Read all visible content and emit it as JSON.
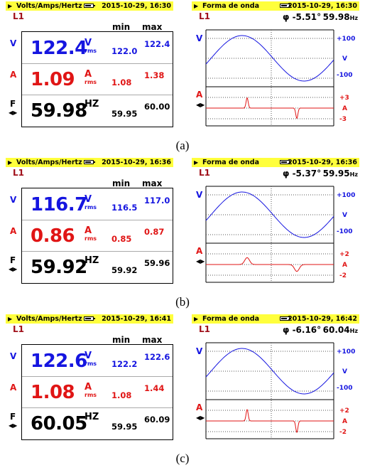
{
  "panels": [
    {
      "meter": {
        "title": "Volts/Amps/Hertz",
        "datetime": "2015-10-29, 16:30",
        "phase_label": "L1",
        "col_min": "min",
        "col_max": "max",
        "v_label": "V",
        "v_value": "122.4",
        "v_unit": "V",
        "v_sub": "rms",
        "v_min": "122.0",
        "v_max": "122.4",
        "a_label": "A",
        "a_value": "1.09",
        "a_unit": "A",
        "a_sub": "rms",
        "a_min": "1.08",
        "a_max": "1.38",
        "f_label": "F",
        "f_value": "59.98",
        "f_unit": "HZ",
        "f_min": "59.95",
        "f_max": "60.00"
      },
      "wave": {
        "title": "Forma de onda",
        "datetime": "2015-10-29, 16:30",
        "phase_label": "L1",
        "phi": "φ -5.51°",
        "freq": "59.98",
        "freq_unit": "Hz",
        "v_label": "V",
        "v_ticks": [
          "+100",
          "V",
          "-100"
        ],
        "a_label": "A",
        "a_ticks": [
          "+3",
          "A",
          "-3"
        ],
        "pulse_amp": 0.9,
        "pulse_width": 0.7
      },
      "caption": "(a)"
    },
    {
      "meter": {
        "title": "Volts/Amps/Hertz",
        "datetime": "2015-10-29, 16:36",
        "phase_label": "L1",
        "col_min": "min",
        "col_max": "max",
        "v_label": "V",
        "v_value": "116.7",
        "v_unit": "V",
        "v_sub": "rms",
        "v_min": "116.5",
        "v_max": "117.0",
        "a_label": "A",
        "a_value": "0.86",
        "a_unit": "A",
        "a_sub": "rms",
        "a_min": "0.85",
        "a_max": "0.87",
        "f_label": "F",
        "f_value": "59.92",
        "f_unit": "HZ",
        "f_min": "59.92",
        "f_max": "59.96"
      },
      "wave": {
        "title": "Forma de onda",
        "datetime": "2015-10-29, 16:36",
        "phase_label": "L1",
        "phi": "φ -5.37°",
        "freq": "59.95",
        "freq_unit": "Hz",
        "v_label": "V",
        "v_ticks": [
          "+100",
          "V",
          "-100"
        ],
        "a_label": "A",
        "a_ticks": [
          "+2",
          "A",
          "-2"
        ],
        "pulse_amp": 0.6,
        "pulse_width": 1.6
      },
      "caption": "(b)"
    },
    {
      "meter": {
        "title": "Volts/Amps/Hertz",
        "datetime": "2015-10-29, 16:41",
        "phase_label": "L1",
        "col_min": "min",
        "col_max": "max",
        "v_label": "V",
        "v_value": "122.6",
        "v_unit": "V",
        "v_sub": "rms",
        "v_min": "122.2",
        "v_max": "122.6",
        "a_label": "A",
        "a_value": "1.08",
        "a_unit": "A",
        "a_sub": "rms",
        "a_min": "1.08",
        "a_max": "1.44",
        "f_label": "F",
        "f_value": "60.05",
        "f_unit": "HZ",
        "f_min": "59.95",
        "f_max": "60.09"
      },
      "wave": {
        "title": "Forma de onda",
        "datetime": "2015-10-29, 16:42",
        "phase_label": "L1",
        "phi": "φ -6.16°",
        "freq": "60.04",
        "freq_unit": "Hz",
        "v_label": "V",
        "v_ticks": [
          "+100",
          "V",
          "-100"
        ],
        "a_label": "A",
        "a_ticks": [
          "+2",
          "A",
          "-2"
        ],
        "pulse_amp": 1.0,
        "pulse_width": 0.7
      },
      "caption": "(c)"
    }
  ],
  "colors": {
    "header_bg": "#ffff3c",
    "phase_label": "#a0101a",
    "voltage": "#1515e0",
    "current": "#e01515",
    "grid": "#555555"
  }
}
